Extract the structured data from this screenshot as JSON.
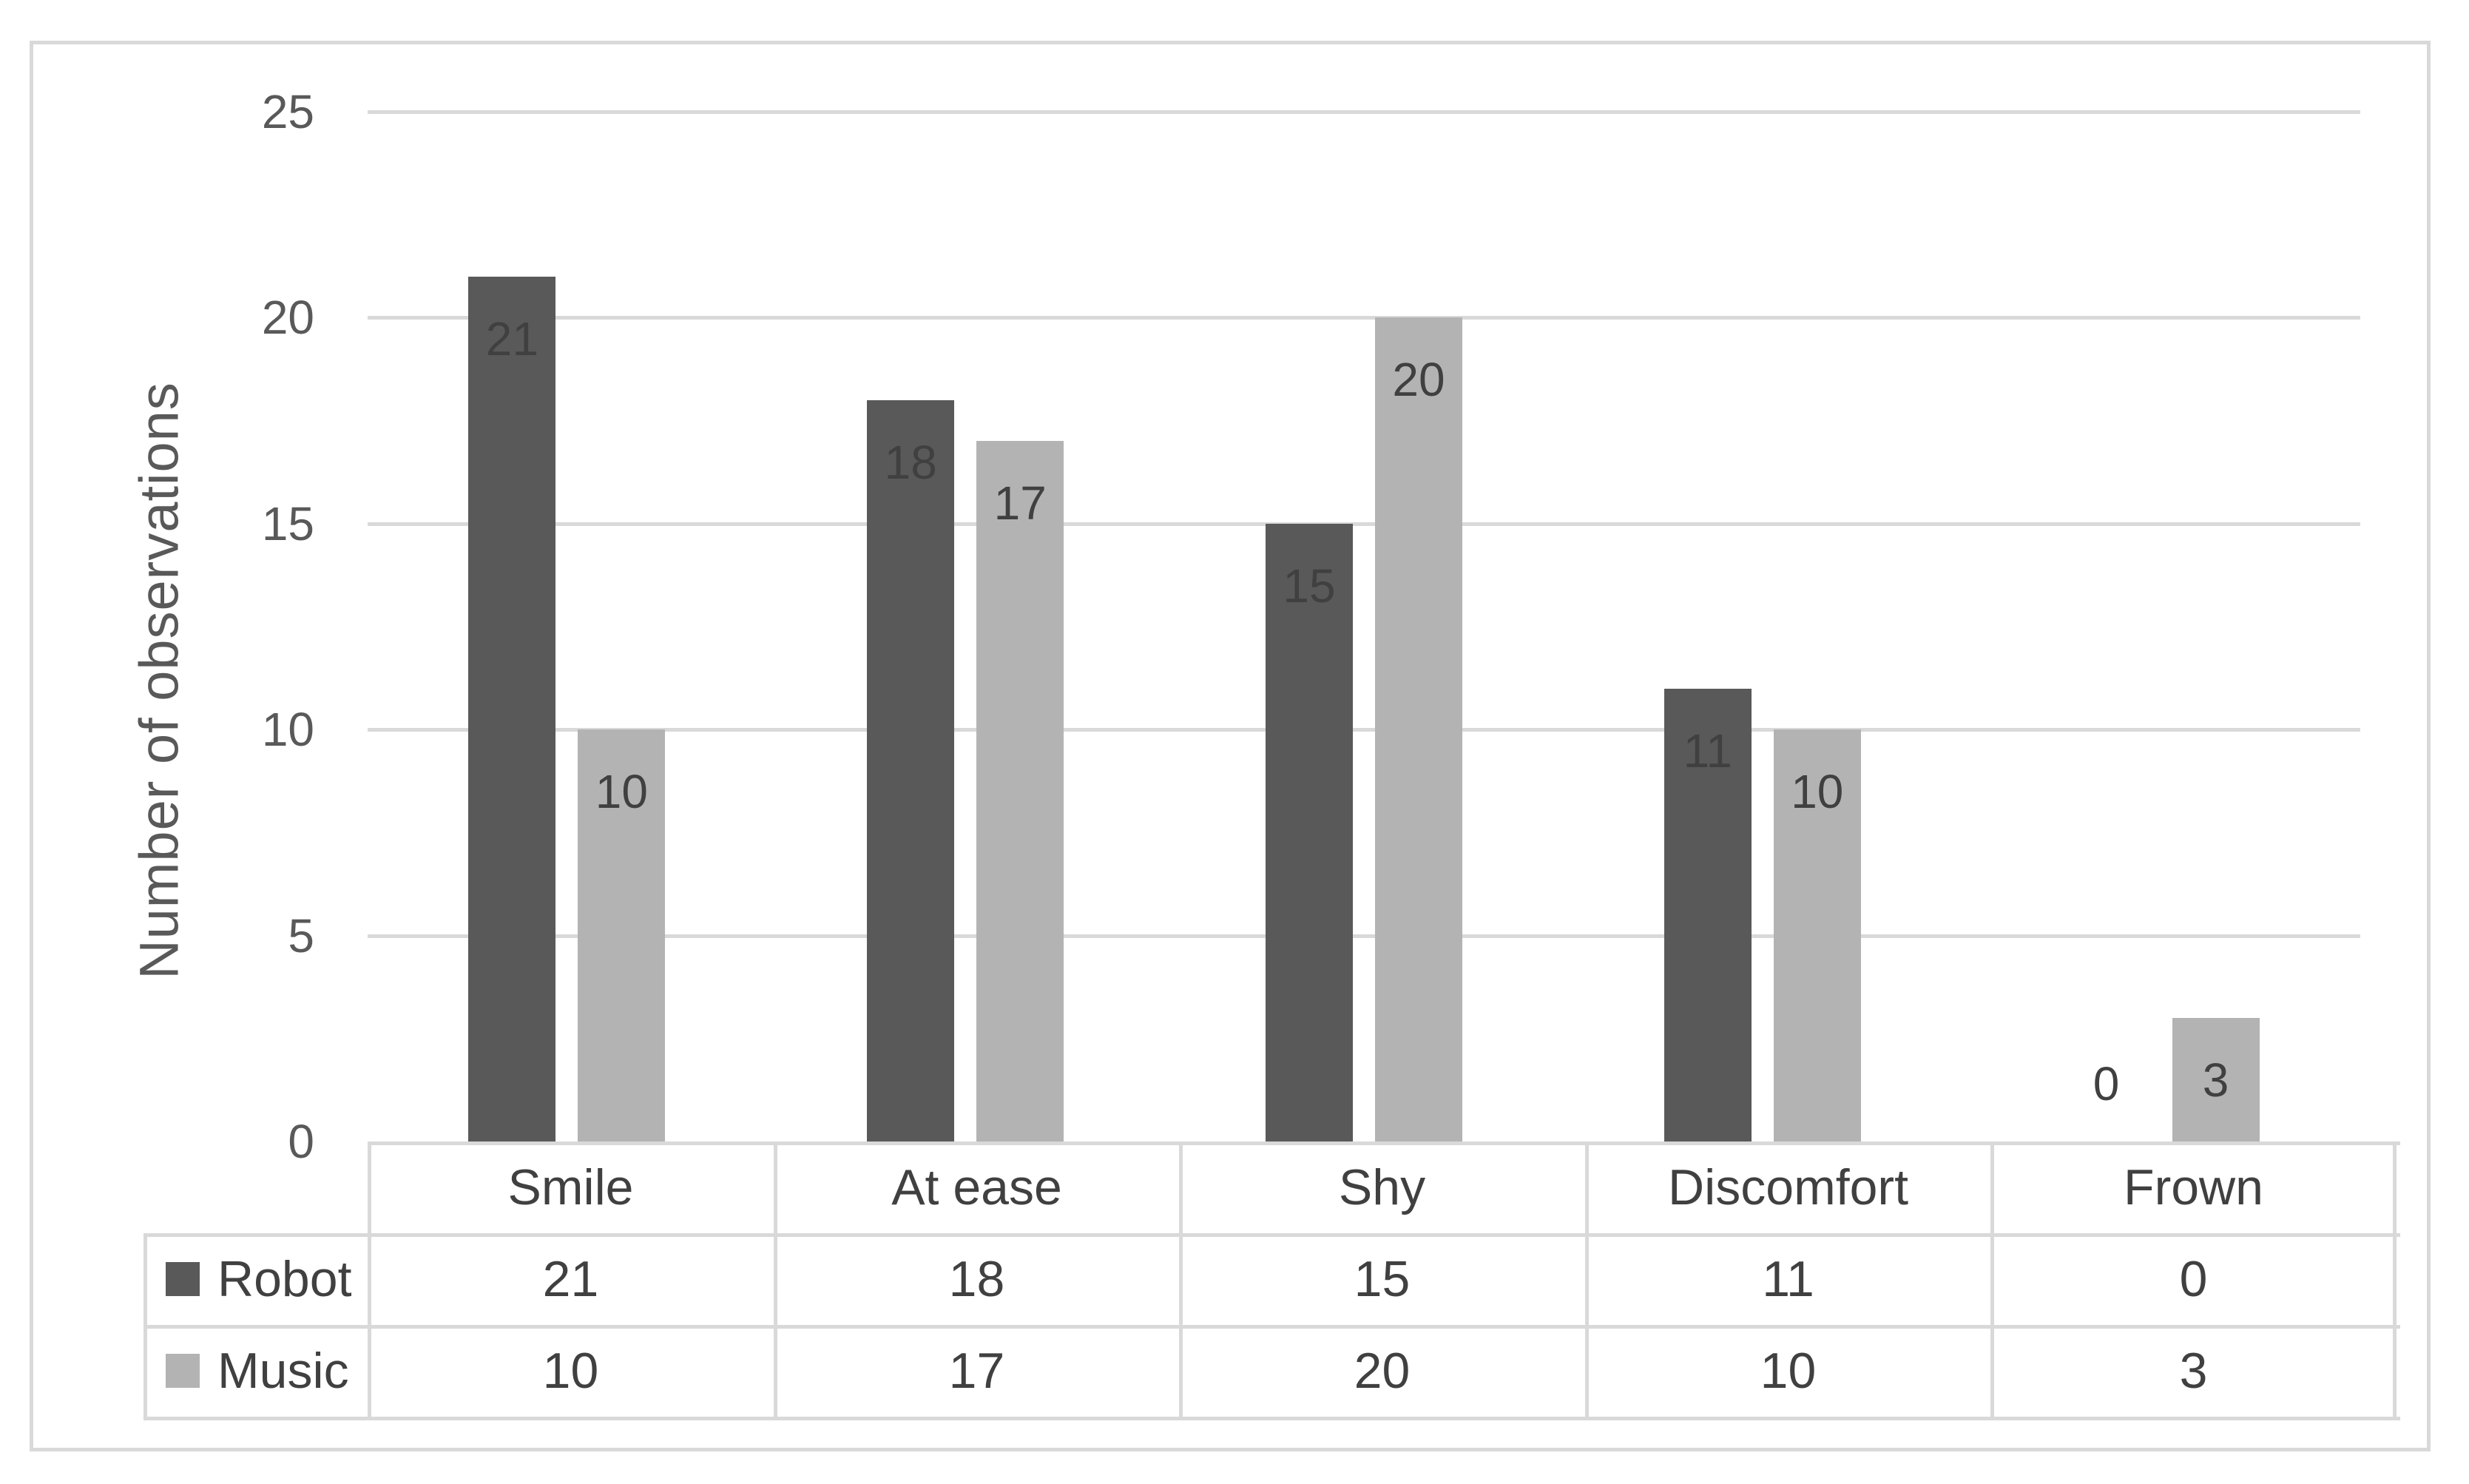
{
  "chart_data": {
    "type": "bar",
    "title": "",
    "ylabel": "Number of observations",
    "xlabel": "",
    "categories": [
      "Smile",
      "At ease",
      "Shy",
      "Discomfort",
      "Frown"
    ],
    "series": [
      {
        "name": "Robot",
        "color": "#595959",
        "values": [
          21,
          18,
          15,
          11,
          0
        ]
      },
      {
        "name": "Music",
        "color": "#b3b3b3",
        "values": [
          10,
          17,
          20,
          10,
          3
        ]
      }
    ],
    "ylim": [
      0,
      25
    ],
    "yticks": [
      0,
      5,
      10,
      15,
      20,
      25
    ],
    "grid": true,
    "data_labels": true,
    "legend_position": "data-table-left"
  },
  "styles": {
    "background": "#ffffff",
    "figure_border_color": "#d9d9d9",
    "gridline_color": "#d9d9d9",
    "table_border_color": "#d9d9d9",
    "axis_text_color": "#595959",
    "data_label_color": "#404040",
    "table_text_color": "#404040"
  }
}
